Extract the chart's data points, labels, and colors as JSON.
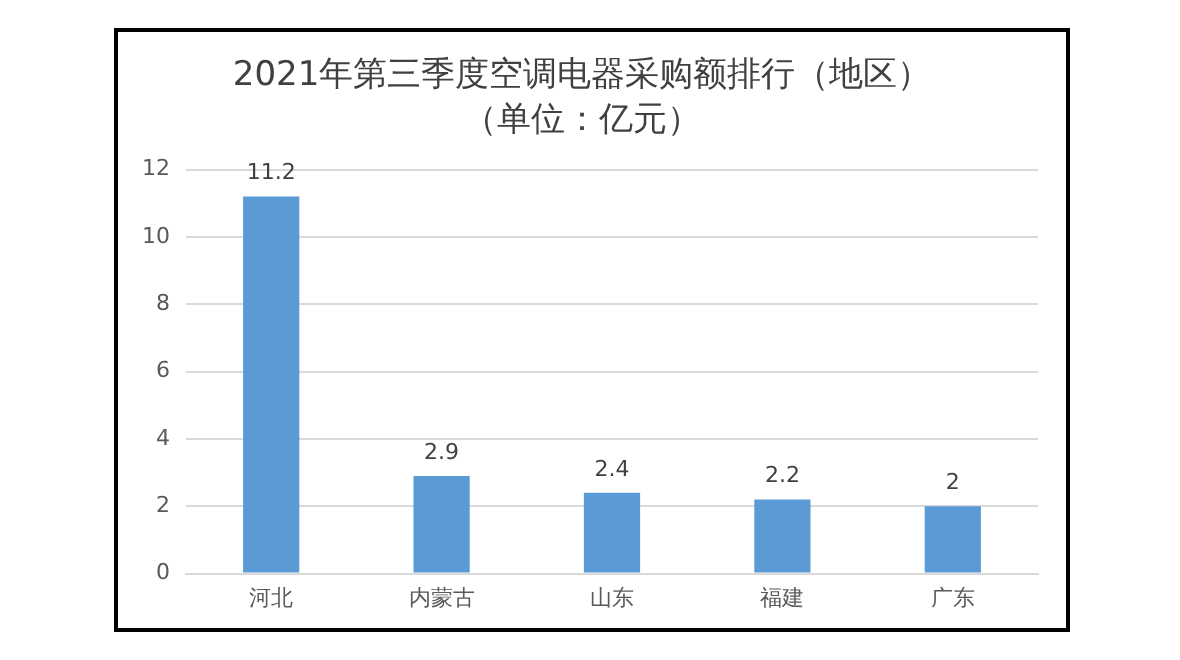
{
  "chart_data": {
    "type": "bar",
    "title": "2021年第三季度空调电器采购额排行（地区）",
    "subtitle": "（单位：亿元）",
    "categories": [
      "河北",
      "内蒙古",
      "山东",
      "福建",
      "广东"
    ],
    "values": [
      11.2,
      2.9,
      2.4,
      2.2,
      2
    ],
    "color": "#5b9bd5",
    "ylim": [
      0,
      12
    ],
    "yticks": [
      0,
      2,
      4,
      6,
      8,
      10,
      12
    ],
    "grid": "y",
    "data_labels": true
  }
}
